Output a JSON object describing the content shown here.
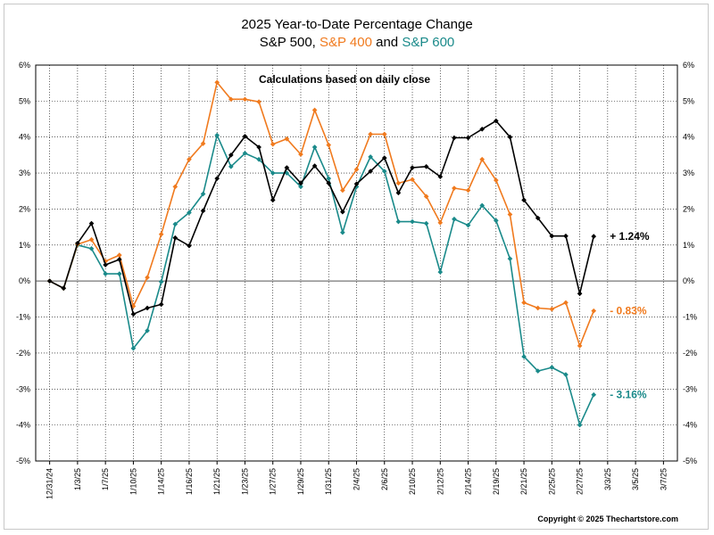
{
  "title": "2025 Year-to-Date Percentage Change",
  "subtitle": {
    "part1": "S&P 500, ",
    "part2": "S&P 400",
    "part3": " and ",
    "part4": "S&P 600"
  },
  "annotation": "Calculations based on daily close",
  "copyright": "Copyright © 2025 Thechartstore.com",
  "colors": {
    "sp500": "#000000",
    "sp400": "#f07a1e",
    "sp600": "#1a8a8a",
    "zero_line": "#555555",
    "grid": "#000000"
  },
  "chart_data": {
    "type": "line",
    "ylim": [
      -5,
      6
    ],
    "y_tick_labels": [
      "6%",
      "5%",
      "4%",
      "3%",
      "2%",
      "1%",
      "0%",
      "-1%",
      "-2%",
      "-3%",
      "-4%",
      "-5%"
    ],
    "x_tick_labels": [
      "12/31/24",
      "1/3/25",
      "1/7/25",
      "1/10/25",
      "1/14/25",
      "1/16/25",
      "1/21/25",
      "1/23/25",
      "1/27/25",
      "1/29/25",
      "1/31/25",
      "2/4/25",
      "2/6/25",
      "2/10/25",
      "2/12/25",
      "2/14/25",
      "2/19/25",
      "2/21/25",
      "2/25/25",
      "2/27/25",
      "3/3/25",
      "3/5/25",
      "3/7/25"
    ],
    "x_slots": 46,
    "series": [
      {
        "name": "S&P 500",
        "end_label": "+ 1.24%",
        "values": [
          0,
          -0.2,
          1.05,
          1.6,
          0.45,
          0.6,
          -0.92,
          -0.75,
          -0.65,
          1.2,
          0.98,
          1.95,
          2.85,
          3.5,
          4.02,
          3.72,
          2.25,
          3.15,
          2.72,
          3.2,
          2.72,
          1.92,
          2.7,
          3.05,
          3.42,
          2.45,
          3.15,
          3.18,
          2.9,
          3.98,
          3.98,
          4.22,
          4.45,
          4.0,
          2.25,
          1.75,
          1.25,
          1.25,
          -0.35,
          1.24
        ]
      },
      {
        "name": "S&P 400",
        "end_label": "- 0.83%",
        "values": [
          0,
          -0.2,
          1.02,
          1.15,
          0.55,
          0.72,
          -0.7,
          0.1,
          1.3,
          2.62,
          3.38,
          3.82,
          5.52,
          5.05,
          5.05,
          4.98,
          3.8,
          3.95,
          3.52,
          4.75,
          3.78,
          2.52,
          3.1,
          4.08,
          4.08,
          2.72,
          2.82,
          2.35,
          1.62,
          2.58,
          2.52,
          3.38,
          2.8,
          1.85,
          -0.6,
          -0.75,
          -0.78,
          -0.6,
          -1.8,
          -0.83
        ]
      },
      {
        "name": "S&P 600",
        "end_label": "- 3.16%",
        "values": [
          0,
          -0.2,
          1.0,
          0.9,
          0.2,
          0.2,
          -1.87,
          -1.38,
          -0.02,
          1.58,
          1.9,
          2.42,
          4.05,
          3.18,
          3.55,
          3.38,
          3.0,
          3.0,
          2.62,
          3.72,
          2.85,
          1.35,
          2.62,
          3.45,
          3.05,
          1.65,
          1.65,
          1.6,
          0.25,
          1.72,
          1.55,
          2.1,
          1.68,
          0.62,
          -2.1,
          -2.5,
          -2.4,
          -2.6,
          -4.0,
          -3.16
        ]
      }
    ],
    "grid": true,
    "legend": "none (series names in title)"
  }
}
